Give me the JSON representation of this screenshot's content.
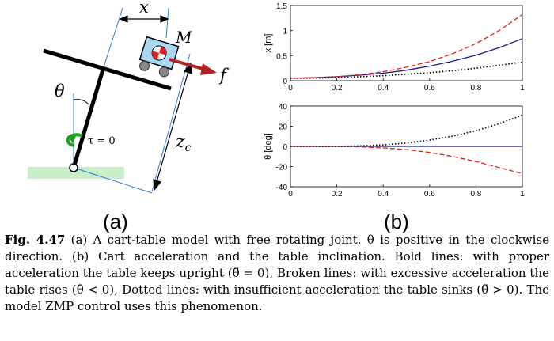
{
  "figure_a": {
    "x_label": "x",
    "mass_label": "M",
    "force_label": "f",
    "theta_label": "θ",
    "tau_label": "τ = 0",
    "zc_label": "z",
    "zc_sub": "c",
    "sub_label": "(a)"
  },
  "figure_b": {
    "sub_label": "(b)"
  },
  "chart_data": [
    {
      "type": "line",
      "ylabel": "x [m]",
      "xlim": [
        0,
        1
      ],
      "ylim": [
        0,
        1.5
      ],
      "x_ticks": [
        "0",
        "0.2",
        "0.4",
        "0.6",
        "0.8",
        "1"
      ],
      "y_ticks": [
        "0",
        "0.5",
        "1",
        "1.5"
      ],
      "x": [
        0,
        0.1,
        0.2,
        0.3,
        0.4,
        0.5,
        0.6,
        0.7,
        0.8,
        0.9,
        1.0
      ],
      "series": [
        {
          "style": "solid",
          "color": "#1a1a8c",
          "values": [
            0.05,
            0.06,
            0.08,
            0.11,
            0.15,
            0.21,
            0.29,
            0.39,
            0.51,
            0.66,
            0.84
          ]
        },
        {
          "style": "dashed",
          "color": "#e02020",
          "values": [
            0.05,
            0.06,
            0.08,
            0.12,
            0.18,
            0.27,
            0.38,
            0.54,
            0.74,
            1.0,
            1.32
          ]
        },
        {
          "style": "dotted",
          "color": "#000000",
          "values": [
            0.05,
            0.05,
            0.06,
            0.08,
            0.1,
            0.13,
            0.16,
            0.2,
            0.25,
            0.31,
            0.37
          ]
        }
      ]
    },
    {
      "type": "line",
      "ylabel": "θ [deg]",
      "xlim": [
        0,
        1
      ],
      "ylim": [
        -40,
        40
      ],
      "x_ticks": [
        "0",
        "0.2",
        "0.4",
        "0.6",
        "0.8",
        "1"
      ],
      "y_ticks": [
        "-40",
        "-20",
        "0",
        "20",
        "40"
      ],
      "x": [
        0,
        0.1,
        0.2,
        0.3,
        0.4,
        0.5,
        0.6,
        0.7,
        0.8,
        0.9,
        1.0
      ],
      "series": [
        {
          "style": "solid",
          "color": "#1a1a8c",
          "values": [
            0,
            0,
            0,
            0,
            0,
            0,
            0,
            0,
            0,
            0,
            0
          ]
        },
        {
          "style": "dashed",
          "color": "#e02020",
          "values": [
            0,
            0,
            -0.1,
            -0.5,
            -1.5,
            -3.2,
            -6,
            -10,
            -15,
            -21,
            -27
          ]
        },
        {
          "style": "dotted",
          "color": "#000000",
          "values": [
            0,
            0,
            0.1,
            0.5,
            1.5,
            3.3,
            6.2,
            10.2,
            15.5,
            22.5,
            31
          ]
        }
      ]
    }
  ],
  "caption": {
    "label": "Fig. 4.47",
    "text": " (a) A cart-table model with free rotating joint. θ is positive in the clockwise direction. (b) Cart acceleration and the table inclination. Bold lines: with proper acceleration the table keeps upright (θ̈ = 0), Broken lines: with excessive acceleration the table rises (θ̈ < 0), Dotted lines: with insufficient acceleration the table sinks (θ̈ > 0). The model ZMP control uses this phenomenon."
  }
}
